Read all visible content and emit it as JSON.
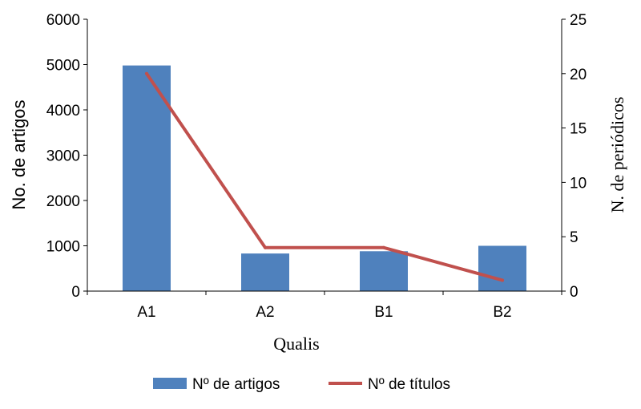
{
  "chart_data": {
    "type": "bar",
    "categories": [
      "A1",
      "A2",
      "B1",
      "B2"
    ],
    "series": [
      {
        "name": "Nº de artigos",
        "type": "bar",
        "axis": "left",
        "color": "#4f81bd",
        "values": [
          4980,
          830,
          880,
          1000
        ]
      },
      {
        "name": "Nº de títulos",
        "type": "line",
        "axis": "right",
        "color": "#c0504d",
        "values": [
          20,
          4,
          4,
          1
        ]
      }
    ],
    "xlabel": "Qualis",
    "ylabel": "No. de artigos",
    "y2label": "N. de periódicos",
    "ylim": [
      0,
      6000
    ],
    "y2lim": [
      0,
      25
    ],
    "yticks": [
      "0",
      "1000",
      "2000",
      "3000",
      "4000",
      "5000",
      "6000"
    ],
    "y2ticks": [
      "0",
      "5",
      "10",
      "15",
      "20",
      "25"
    ],
    "grid": false,
    "legend_position": "bottom"
  }
}
